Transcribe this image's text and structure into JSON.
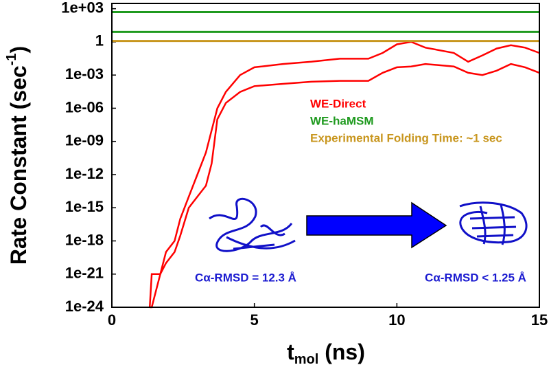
{
  "chart_data": {
    "type": "line",
    "log_y": true,
    "y_label": {
      "text": "Rate Constant  (sec",
      "sup": "-1",
      "end": ")"
    },
    "x_label": {
      "text": "t",
      "sub": "mol",
      "end": "  (ns)"
    },
    "xlim": [
      0,
      15
    ],
    "xticks": [
      0,
      5,
      10,
      15
    ],
    "ylim": [
      1e-24,
      3000
    ],
    "yticks": [
      {
        "value": 1000,
        "label": "1e+03"
      },
      1,
      {
        "value": 0.001,
        "label": "1e-03"
      },
      {
        "value": 1e-06,
        "label": "1e-06"
      },
      {
        "value": 1e-09,
        "label": "1e-09"
      },
      {
        "value": 1e-12,
        "label": "1e-12"
      },
      {
        "value": 1e-15,
        "label": "1e-15"
      },
      {
        "value": 1e-18,
        "label": "1e-18"
      },
      {
        "value": 1e-21,
        "label": "1e-21"
      },
      {
        "value": 1e-24,
        "label": "1e-24"
      }
    ],
    "x": [
      1.33,
      1.4,
      1.7,
      1.9,
      2.2,
      2.4,
      2.7,
      3.0,
      3.3,
      3.5,
      3.7,
      4.0,
      4.5,
      5,
      6,
      7,
      8,
      9,
      9.5,
      10,
      10.5,
      11,
      12,
      12.5,
      13,
      13.5,
      14,
      14.5,
      15
    ],
    "series": [
      {
        "name": "WE-Direct",
        "color": "#ff0000",
        "values": [
          1e-24,
          1e-21,
          1e-21,
          1e-19,
          1e-18,
          1e-16,
          1e-14,
          1e-12,
          1e-10,
          1e-08,
          1e-06,
          3e-05,
          0.001,
          0.005,
          0.01,
          0.016,
          0.03,
          0.03,
          0.1,
          0.6,
          1,
          0.3,
          0.1,
          0.016,
          0.06,
          0.25,
          0.5,
          0.3,
          0.1
        ],
        "lower": [
          1e-24,
          1e-24,
          1e-21,
          1e-20,
          1e-19,
          3e-18,
          1e-15,
          1e-14,
          1e-13,
          1e-11,
          1e-07,
          3e-06,
          3e-05,
          0.0001,
          0.00016,
          0.00025,
          0.0003,
          0.0003,
          0.0016,
          0.005,
          0.006,
          0.01,
          0.006,
          0.0016,
          0.001,
          0.0025,
          0.01,
          0.005,
          0.0016
        ]
      },
      {
        "name": "WE-haMSM",
        "color": "#1f9a1f",
        "hlines": [
          500,
          8
        ]
      },
      {
        "name": "Experimental Folding Time:  ~1 sec",
        "color": "#c8961e",
        "hlines": [
          1.2
        ]
      }
    ],
    "annotations": [
      "Cα-RMSD = 12.3 Å",
      "Cα-RMSD < 1.25 Å"
    ]
  }
}
